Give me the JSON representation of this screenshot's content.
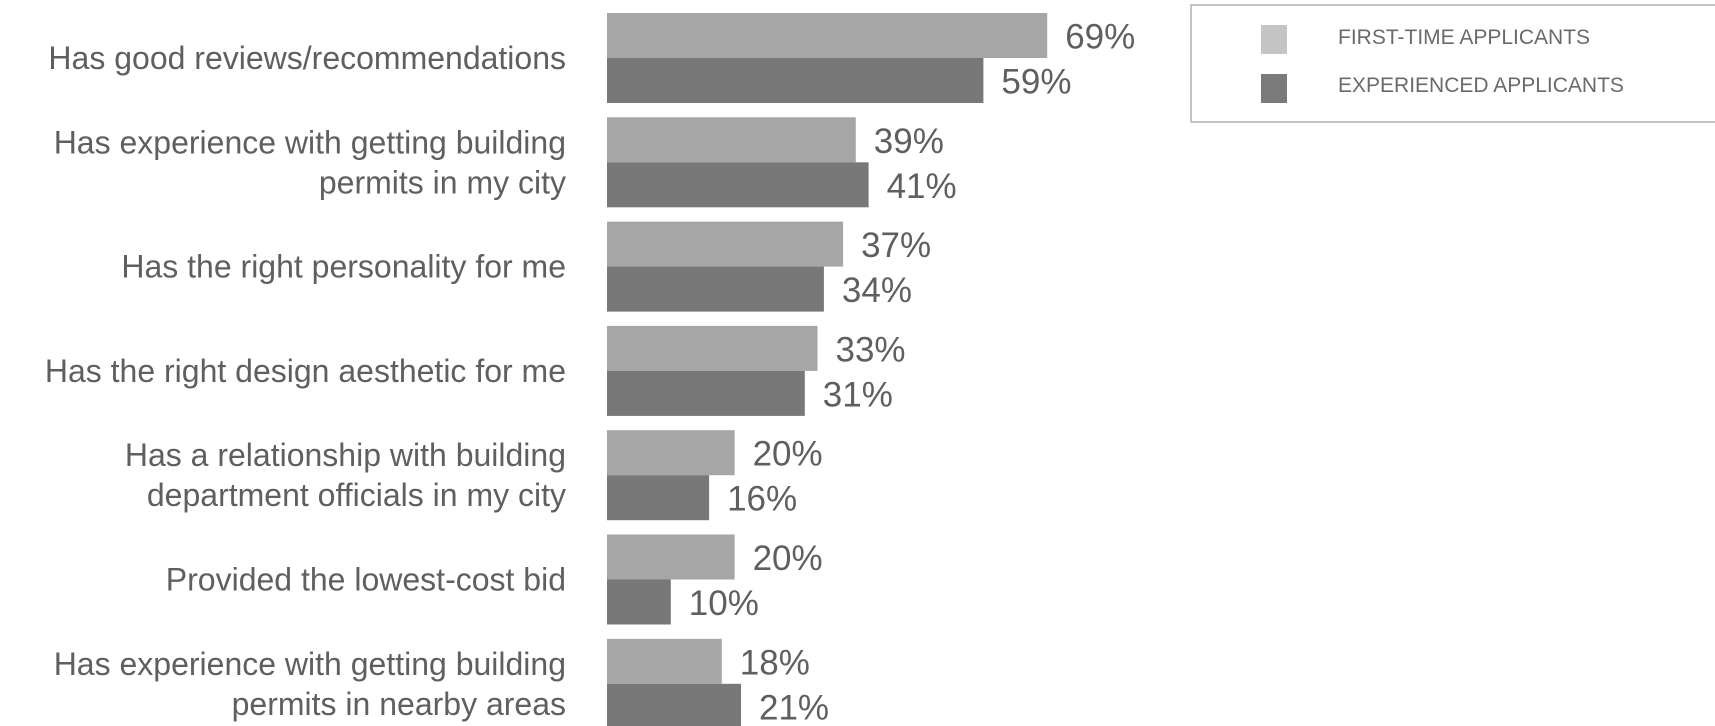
{
  "chart_data": {
    "type": "bar",
    "orientation": "horizontal",
    "title": "",
    "xlabel": "",
    "ylabel": "",
    "xlim": [
      0,
      100
    ],
    "grid": false,
    "legend_placement": "top-right",
    "value_suffix": "%",
    "categories": [
      [
        "Has good reviews/recommendations"
      ],
      [
        "Has experience with getting building",
        "permits in my city"
      ],
      [
        "Has the right personality for me"
      ],
      [
        "Has the right design aesthetic for me"
      ],
      [
        "Has a relationship with building",
        "department officials in my city"
      ],
      [
        "Provided the lowest-cost bid"
      ],
      [
        "Has experience with getting building",
        "permits in nearby areas"
      ]
    ],
    "series": [
      {
        "name": "FIRST-TIME APPLICANTS",
        "color": "#a6a6a6",
        "legend_color": "#c4c4c4",
        "values": [
          69,
          39,
          37,
          33,
          20,
          20,
          18
        ]
      },
      {
        "name": "EXPERIENCED APPLICANTS",
        "color": "#787878",
        "legend_color": "#7a7a7a",
        "values": [
          59,
          41,
          34,
          31,
          16,
          10,
          21
        ]
      }
    ]
  }
}
